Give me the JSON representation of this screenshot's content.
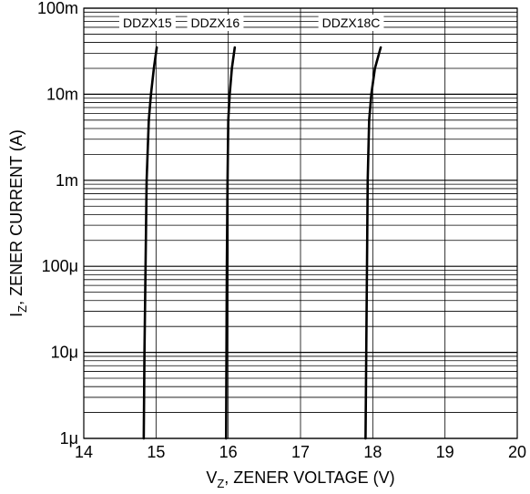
{
  "chart_data": {
    "type": "line",
    "xlabel": {
      "main": "V",
      "sub": "Z",
      "rest": ", ZENER VOLTAGE (V)"
    },
    "ylabel": {
      "main": "I",
      "sub": "Z",
      "rest": ", ZENER CURRENT (A)"
    },
    "xlim": [
      14,
      20
    ],
    "ylim": [
      1e-06,
      0.1
    ],
    "yscale": "log",
    "grid": true,
    "x_ticks": [
      {
        "value": 14,
        "label": "14"
      },
      {
        "value": 15,
        "label": "15"
      },
      {
        "value": 16,
        "label": "16"
      },
      {
        "value": 17,
        "label": "17"
      },
      {
        "value": 18,
        "label": "18"
      },
      {
        "value": 19,
        "label": "19"
      },
      {
        "value": 20,
        "label": "20"
      }
    ],
    "y_ticks": [
      {
        "value": 1e-06,
        "label": "1μ"
      },
      {
        "value": 1e-05,
        "label": "10μ"
      },
      {
        "value": 0.0001,
        "label": "100μ"
      },
      {
        "value": 0.001,
        "label": "1m"
      },
      {
        "value": 0.01,
        "label": "10m"
      },
      {
        "value": 0.1,
        "label": "100m"
      }
    ],
    "series": [
      {
        "name": "DDZX15",
        "label_x": 14.88,
        "points": [
          [
            14.83,
            1e-06
          ],
          [
            14.84,
            1e-05
          ],
          [
            14.855,
            0.0001
          ],
          [
            14.87,
            0.001
          ],
          [
            14.9,
            0.005
          ],
          [
            14.93,
            0.01
          ],
          [
            14.97,
            0.02
          ],
          [
            15.01,
            0.035
          ]
        ]
      },
      {
        "name": "DDZX16",
        "label_x": 15.82,
        "points": [
          [
            15.97,
            1e-06
          ],
          [
            15.975,
            1e-05
          ],
          [
            15.98,
            0.0001
          ],
          [
            15.99,
            0.001
          ],
          [
            16.0,
            0.005
          ],
          [
            16.02,
            0.01
          ],
          [
            16.05,
            0.02
          ],
          [
            16.09,
            0.035
          ]
        ]
      },
      {
        "name": "DDZX18C",
        "label_x": 17.7,
        "points": [
          [
            17.9,
            1e-06
          ],
          [
            17.91,
            1e-05
          ],
          [
            17.92,
            0.0001
          ],
          [
            17.93,
            0.001
          ],
          [
            17.95,
            0.005
          ],
          [
            17.98,
            0.01
          ],
          [
            18.03,
            0.02
          ],
          [
            18.11,
            0.035
          ]
        ]
      }
    ]
  }
}
